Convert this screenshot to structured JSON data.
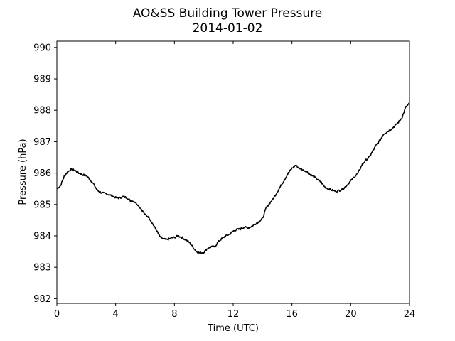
{
  "chart_data": {
    "type": "line",
    "title": "AO&SS Building Tower Pressure",
    "subtitle": "2014-01-02",
    "xlabel": "Time (UTC)",
    "ylabel": "Pressure (hPa)",
    "xlim": [
      0,
      24
    ],
    "ylim": [
      981.85,
      990.2
    ],
    "xticks": [
      0,
      4,
      8,
      12,
      16,
      20,
      24
    ],
    "yticks": [
      982,
      983,
      984,
      985,
      986,
      987,
      988,
      989,
      990
    ],
    "grid": false,
    "legend": "none",
    "series": [
      {
        "color": "#000000",
        "points": [
          [
            0.0,
            985.5
          ],
          [
            0.25,
            985.6
          ],
          [
            0.5,
            985.9
          ],
          [
            0.75,
            986.05
          ],
          [
            1.0,
            986.12
          ],
          [
            1.25,
            986.08
          ],
          [
            1.5,
            986.0
          ],
          [
            1.75,
            985.95
          ],
          [
            2.0,
            985.92
          ],
          [
            2.25,
            985.8
          ],
          [
            2.5,
            985.65
          ],
          [
            2.75,
            985.45
          ],
          [
            3.0,
            985.38
          ],
          [
            3.25,
            985.35
          ],
          [
            3.5,
            985.32
          ],
          [
            3.75,
            985.28
          ],
          [
            4.0,
            985.22
          ],
          [
            4.25,
            985.2
          ],
          [
            4.5,
            985.25
          ],
          [
            4.75,
            985.22
          ],
          [
            5.0,
            985.12
          ],
          [
            5.25,
            985.1
          ],
          [
            5.5,
            985.0
          ],
          [
            5.75,
            984.85
          ],
          [
            6.0,
            984.67
          ],
          [
            6.25,
            984.6
          ],
          [
            6.5,
            984.4
          ],
          [
            6.75,
            984.2
          ],
          [
            7.0,
            983.98
          ],
          [
            7.25,
            983.9
          ],
          [
            7.5,
            983.88
          ],
          [
            7.75,
            983.92
          ],
          [
            8.0,
            983.95
          ],
          [
            8.25,
            984.0
          ],
          [
            8.5,
            983.95
          ],
          [
            8.75,
            983.88
          ],
          [
            9.0,
            983.8
          ],
          [
            9.25,
            983.65
          ],
          [
            9.5,
            983.5
          ],
          [
            9.75,
            983.45
          ],
          [
            10.0,
            983.48
          ],
          [
            10.25,
            983.6
          ],
          [
            10.5,
            983.65
          ],
          [
            10.75,
            983.65
          ],
          [
            11.0,
            983.82
          ],
          [
            11.25,
            983.92
          ],
          [
            11.5,
            984.0
          ],
          [
            11.75,
            984.05
          ],
          [
            12.0,
            984.15
          ],
          [
            12.25,
            984.2
          ],
          [
            12.5,
            984.22
          ],
          [
            12.75,
            984.28
          ],
          [
            13.0,
            984.25
          ],
          [
            13.25,
            984.3
          ],
          [
            13.5,
            984.38
          ],
          [
            13.75,
            984.45
          ],
          [
            14.0,
            984.55
          ],
          [
            14.25,
            984.9
          ],
          [
            14.5,
            985.05
          ],
          [
            14.75,
            985.2
          ],
          [
            15.0,
            985.4
          ],
          [
            15.25,
            985.6
          ],
          [
            15.5,
            985.8
          ],
          [
            15.75,
            986.0
          ],
          [
            16.0,
            986.15
          ],
          [
            16.25,
            986.25
          ],
          [
            16.5,
            986.15
          ],
          [
            16.75,
            986.1
          ],
          [
            17.0,
            986.05
          ],
          [
            17.25,
            985.95
          ],
          [
            17.5,
            985.88
          ],
          [
            17.75,
            985.8
          ],
          [
            18.0,
            985.7
          ],
          [
            18.25,
            985.55
          ],
          [
            18.5,
            985.5
          ],
          [
            18.75,
            985.45
          ],
          [
            19.0,
            985.42
          ],
          [
            19.25,
            985.45
          ],
          [
            19.5,
            985.5
          ],
          [
            19.75,
            985.62
          ],
          [
            20.0,
            985.75
          ],
          [
            20.25,
            985.88
          ],
          [
            20.5,
            986.0
          ],
          [
            20.75,
            986.25
          ],
          [
            21.0,
            986.4
          ],
          [
            21.25,
            986.5
          ],
          [
            21.5,
            986.7
          ],
          [
            21.75,
            986.9
          ],
          [
            22.0,
            987.05
          ],
          [
            22.25,
            987.25
          ],
          [
            22.5,
            987.32
          ],
          [
            22.75,
            987.4
          ],
          [
            23.0,
            987.5
          ],
          [
            23.25,
            987.62
          ],
          [
            23.5,
            987.78
          ],
          [
            23.75,
            988.1
          ],
          [
            24.0,
            988.22
          ]
        ]
      }
    ]
  }
}
